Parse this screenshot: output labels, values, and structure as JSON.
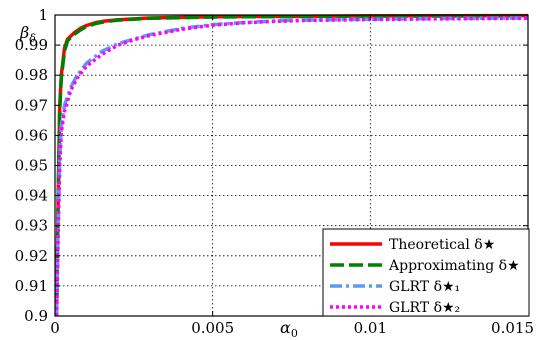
{
  "chart_data": {
    "type": "line",
    "xlabel": "α",
    "xlabel_sub": "0",
    "ylabel": "β",
    "ylabel_sub": "δ",
    "xlim": [
      0,
      0.015
    ],
    "ylim": [
      0.9,
      1.0
    ],
    "x_ticks": [
      0,
      0.005,
      0.01,
      0.015
    ],
    "x_tick_labels": [
      "0",
      "0.005",
      "0.01",
      "0.015"
    ],
    "y_ticks": [
      0.9,
      0.91,
      0.92,
      0.93,
      0.94,
      0.95,
      0.96,
      0.97,
      0.98,
      0.99,
      1.0
    ],
    "y_tick_labels": [
      "0.9",
      "0.91",
      "0.92",
      "0.93",
      "0.94",
      "0.95",
      "0.96",
      "0.97",
      "0.98",
      "0.99",
      "1"
    ],
    "grid": true,
    "legend_position": "bottom-right",
    "series": [
      {
        "name": "Theoretical δ★",
        "color": "#ff0000",
        "style": "solid",
        "x": [
          5e-05,
          0.0001,
          0.00015,
          0.0002,
          0.0003,
          0.0004,
          0.0006,
          0.0008,
          0.001,
          0.0013,
          0.0016,
          0.002,
          0.0025,
          0.003,
          0.004,
          0.005,
          0.006,
          0.008,
          0.01,
          0.015
        ],
        "y": [
          0.9,
          0.94,
          0.97,
          0.98,
          0.989,
          0.992,
          0.994,
          0.9955,
          0.9965,
          0.9975,
          0.998,
          0.9984,
          0.9987,
          0.999,
          0.9992,
          0.9994,
          0.9995,
          0.9996,
          0.9997,
          0.9998
        ]
      },
      {
        "name": "Approximating δ★",
        "color": "#008000",
        "style": "dashed",
        "x": [
          5e-05,
          0.0001,
          0.00015,
          0.0002,
          0.0003,
          0.0004,
          0.0006,
          0.0008,
          0.001,
          0.0013,
          0.0016,
          0.002,
          0.0025,
          0.003,
          0.004,
          0.005,
          0.006,
          0.008,
          0.01,
          0.015
        ],
        "y": [
          0.9,
          0.94,
          0.968,
          0.979,
          0.988,
          0.9915,
          0.9935,
          0.995,
          0.9962,
          0.9972,
          0.9978,
          0.9983,
          0.9986,
          0.9989,
          0.9991,
          0.9993,
          0.9994,
          0.9995,
          0.9996,
          0.9997
        ]
      },
      {
        "name": "GLRT δ★₁",
        "color": "#5b9bf0",
        "style": "dashdot",
        "x": [
          5e-05,
          0.0001,
          0.00015,
          0.0002,
          0.0003,
          0.0005,
          0.0007,
          0.001,
          0.0015,
          0.002,
          0.0025,
          0.003,
          0.004,
          0.005,
          0.006,
          0.007,
          0.008,
          0.01,
          0.012,
          0.015
        ],
        "y": [
          0.9,
          0.93,
          0.952,
          0.963,
          0.97,
          0.976,
          0.98,
          0.984,
          0.988,
          0.9905,
          0.992,
          0.9935,
          0.9955,
          0.9968,
          0.9975,
          0.998,
          0.9983,
          0.9986,
          0.9988,
          0.999
        ]
      },
      {
        "name": "GLRT δ★₂",
        "color": "#ff00ff",
        "style": "dotted",
        "x": [
          5e-05,
          0.0001,
          0.00015,
          0.0002,
          0.0003,
          0.0005,
          0.0007,
          0.001,
          0.0015,
          0.002,
          0.0025,
          0.003,
          0.004,
          0.005,
          0.006,
          0.007,
          0.008,
          0.01,
          0.012,
          0.015
        ],
        "y": [
          0.9,
          0.928,
          0.95,
          0.961,
          0.968,
          0.975,
          0.979,
          0.983,
          0.987,
          0.99,
          0.9918,
          0.9932,
          0.9952,
          0.9966,
          0.9974,
          0.9979,
          0.9982,
          0.9985,
          0.9987,
          0.9989
        ]
      }
    ]
  }
}
